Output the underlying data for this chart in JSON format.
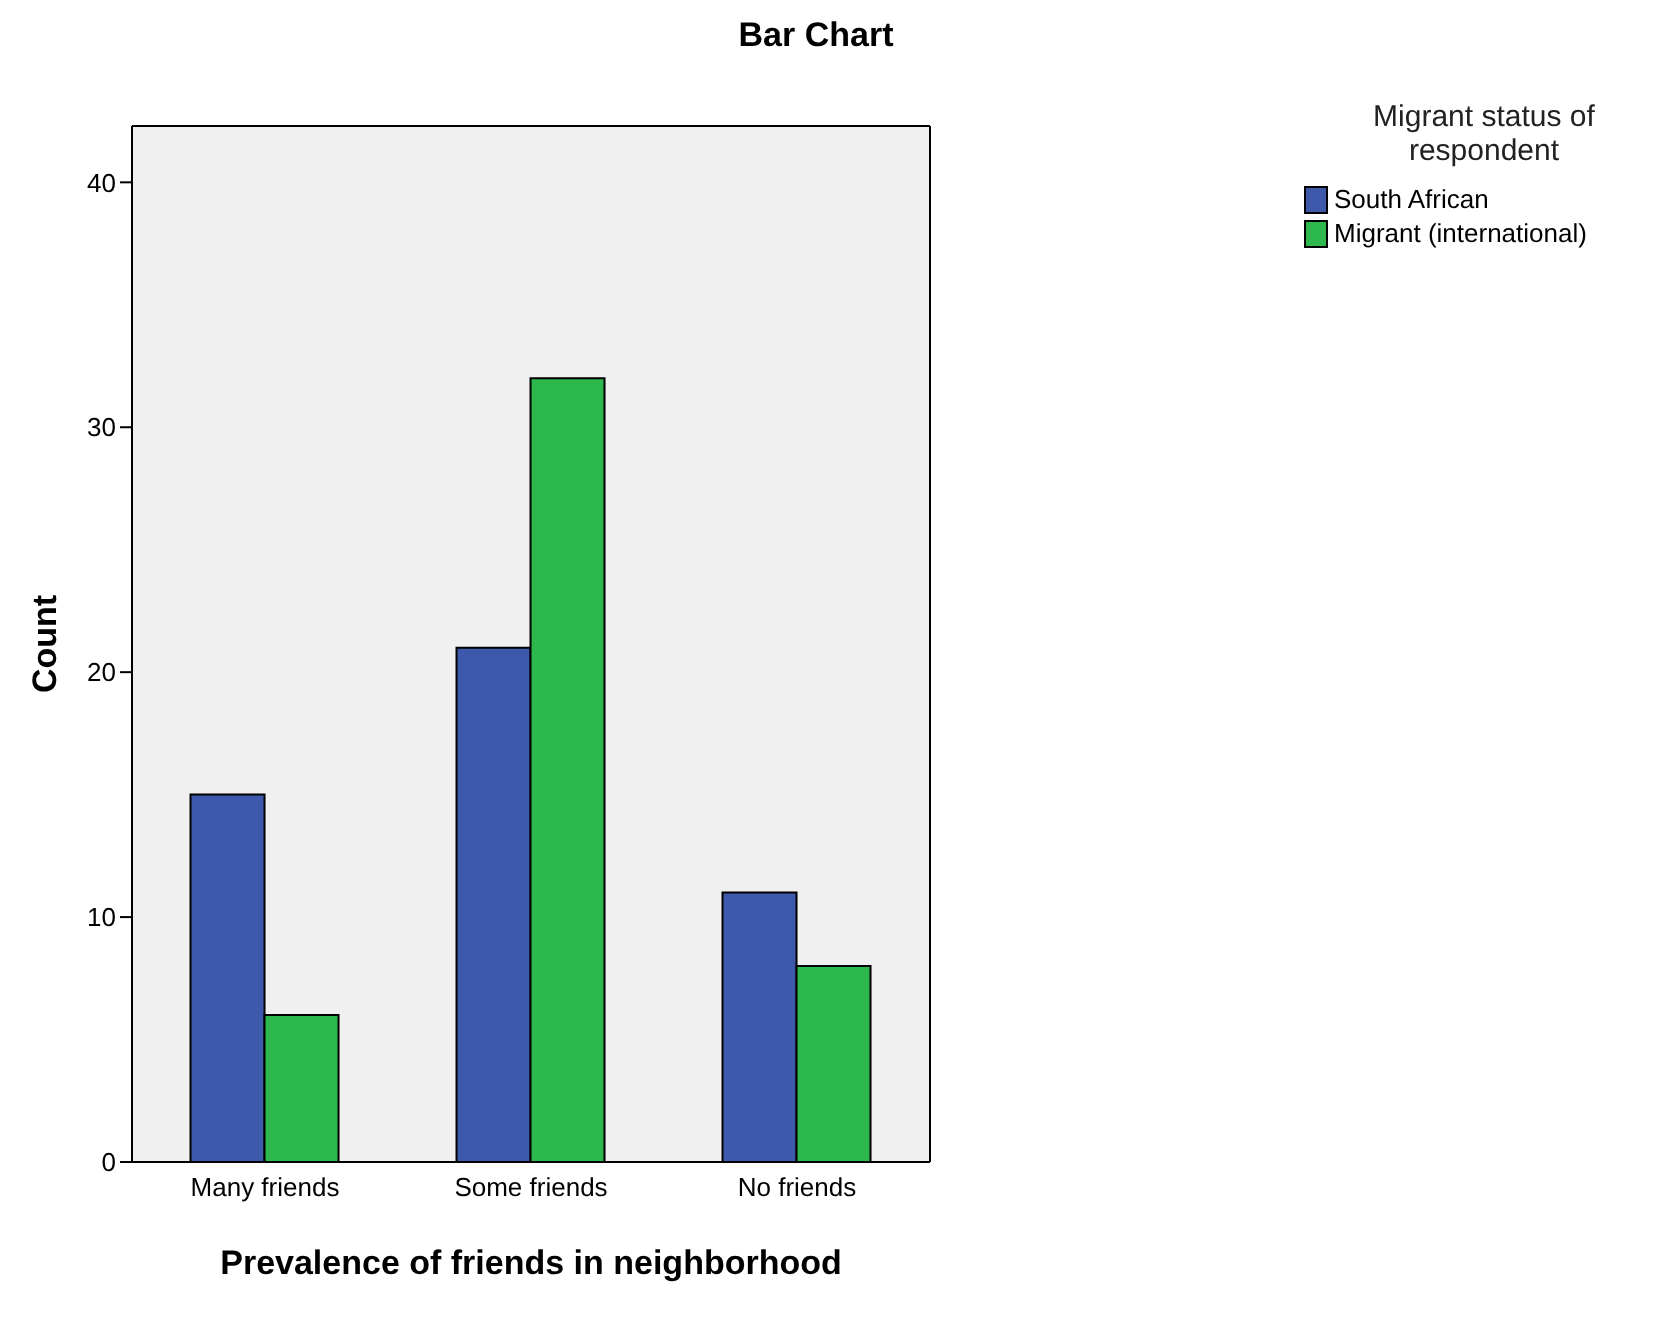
{
  "chart_data": {
    "type": "bar",
    "title": "Bar Chart",
    "xlabel": "Prevalence of friends in neighborhood",
    "ylabel": "Count",
    "legend_title": "Migrant status of respondent",
    "categories": [
      "Many friends",
      "Some friends",
      "No friends"
    ],
    "series": [
      {
        "name": "South African",
        "color": "#3e58ac",
        "values": [
          15,
          21,
          11
        ]
      },
      {
        "name": "Migrant (international)",
        "color": "#2db84d",
        "values": [
          6,
          32,
          8
        ]
      }
    ],
    "ylim": [
      0,
      42.3
    ],
    "yticks": [
      0,
      10,
      20,
      30,
      40
    ],
    "grid": false,
    "legend": "top right"
  }
}
